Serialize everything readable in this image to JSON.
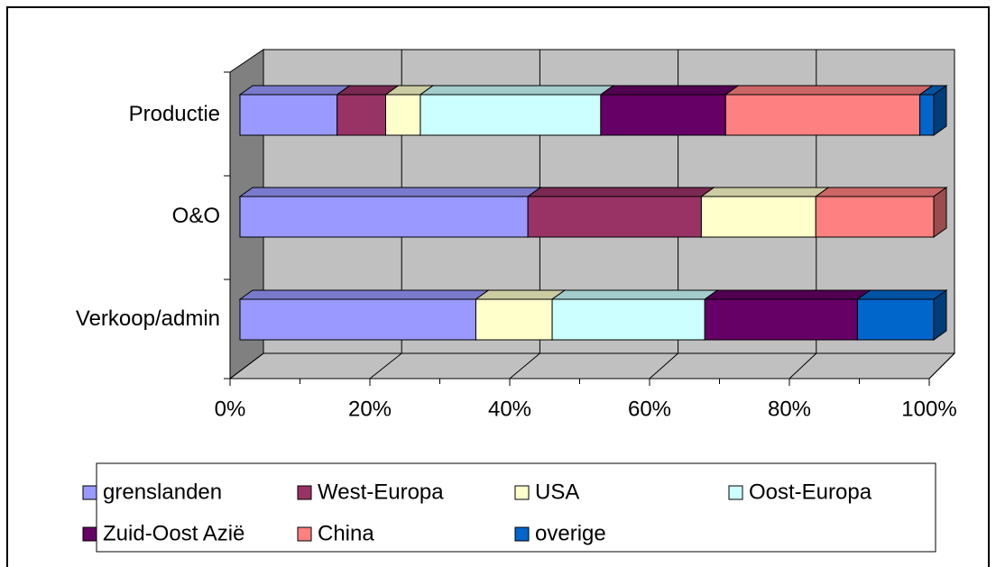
{
  "chart_data": {
    "type": "bar",
    "orientation": "horizontal",
    "stacked": "percent",
    "three_d": true,
    "categories": [
      "Productie",
      "O&O",
      "Verkoop/admin"
    ],
    "series": [
      {
        "name": "grenslanden",
        "color": "#9999ff",
        "values": [
          14,
          41.5,
          34
        ]
      },
      {
        "name": "West-Europa",
        "color": "#993366",
        "values": [
          7,
          25,
          0
        ]
      },
      {
        "name": "USA",
        "color": "#ffffcc",
        "values": [
          5,
          16.5,
          11
        ]
      },
      {
        "name": "Oost-Europa",
        "color": "#ccffff",
        "values": [
          26,
          0,
          22
        ]
      },
      {
        "name": "Zuid-Oost Azië",
        "color": "#660066",
        "values": [
          18,
          0,
          22
        ]
      },
      {
        "name": "China",
        "color": "#ff8080",
        "values": [
          28,
          17,
          0
        ]
      },
      {
        "name": "overige",
        "color": "#0066cc",
        "values": [
          2,
          0,
          11
        ]
      }
    ],
    "xlim": [
      0,
      100
    ],
    "xticks": [
      {
        "value": 0,
        "label": "0%"
      },
      {
        "value": 20,
        "label": "20%"
      },
      {
        "value": 40,
        "label": "40%"
      },
      {
        "value": 60,
        "label": "60%"
      },
      {
        "value": 80,
        "label": "80%"
      },
      {
        "value": 100,
        "label": "100%"
      }
    ],
    "grid": true
  }
}
